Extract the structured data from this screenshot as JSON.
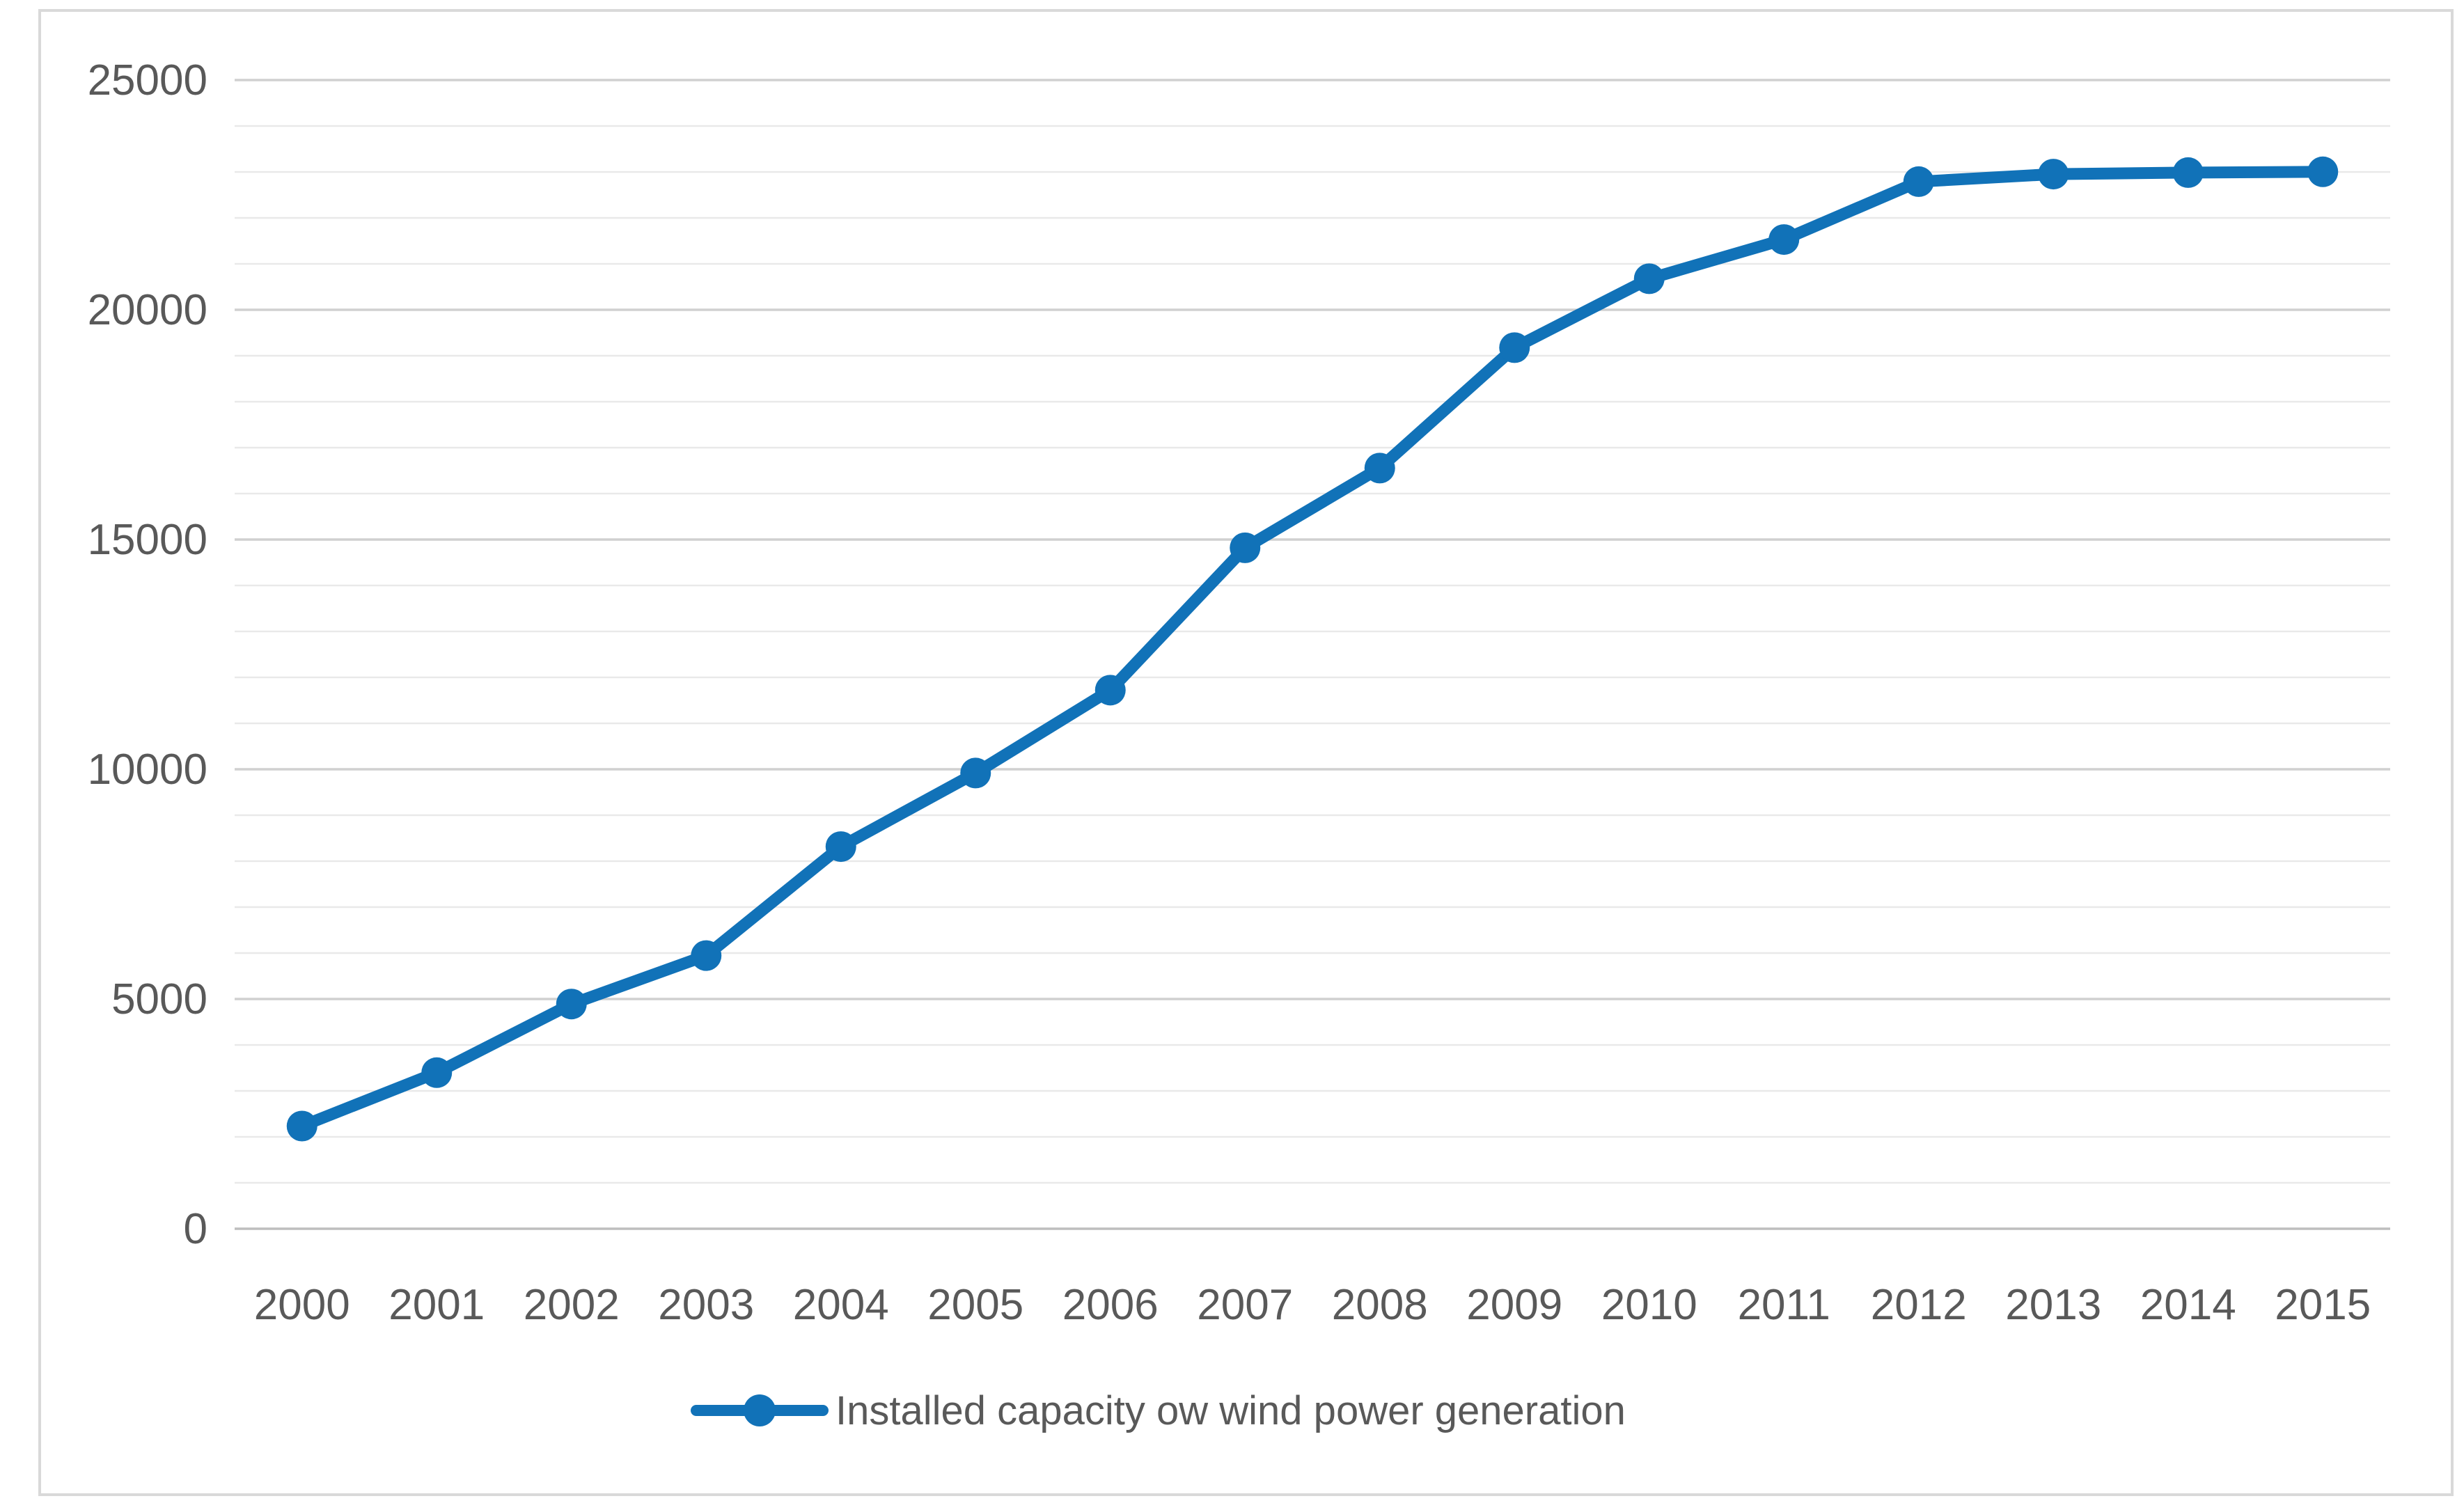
{
  "chart_data": {
    "type": "line",
    "title": "",
    "legend_label": "Installed capacity ow wind power generation",
    "legend_position": "bottom",
    "categories": [
      "2000",
      "2001",
      "2002",
      "2003",
      "2004",
      "2005",
      "2006",
      "2007",
      "2008",
      "2009",
      "2010",
      "2011",
      "2012",
      "2013",
      "2014",
      "2015"
    ],
    "series": [
      {
        "name": "Installed capacity ow wind power generation",
        "values": [
          2235,
          3397,
          4891,
          5945,
          8317,
          9918,
          11722,
          14820,
          16555,
          19176,
          20676,
          21529,
          22789,
          22953,
          22986,
          23003
        ]
      }
    ],
    "xlabel": "",
    "ylabel": "",
    "ylim": [
      0,
      25000
    ],
    "y_major_ticks": [
      0,
      5000,
      10000,
      15000,
      20000,
      25000
    ],
    "y_major_tick_labels": [
      "0",
      "5000",
      "10000",
      "15000",
      "20000",
      "25000"
    ],
    "y_minor_step": 1000,
    "grid": "horizontal-major-and-minor",
    "marker": "circle",
    "colors": {
      "series_line": "#1172B8",
      "marker_fill": "#1172B8",
      "gridline_major": "#D0D0D0",
      "gridline_minor": "#E9E9E9",
      "zero_axis_line": "#BEBEBE",
      "tick_label": "#595959",
      "legend_text": "#595959",
      "chart_border": "#D9D9D9",
      "background": "#FFFFFF"
    }
  }
}
